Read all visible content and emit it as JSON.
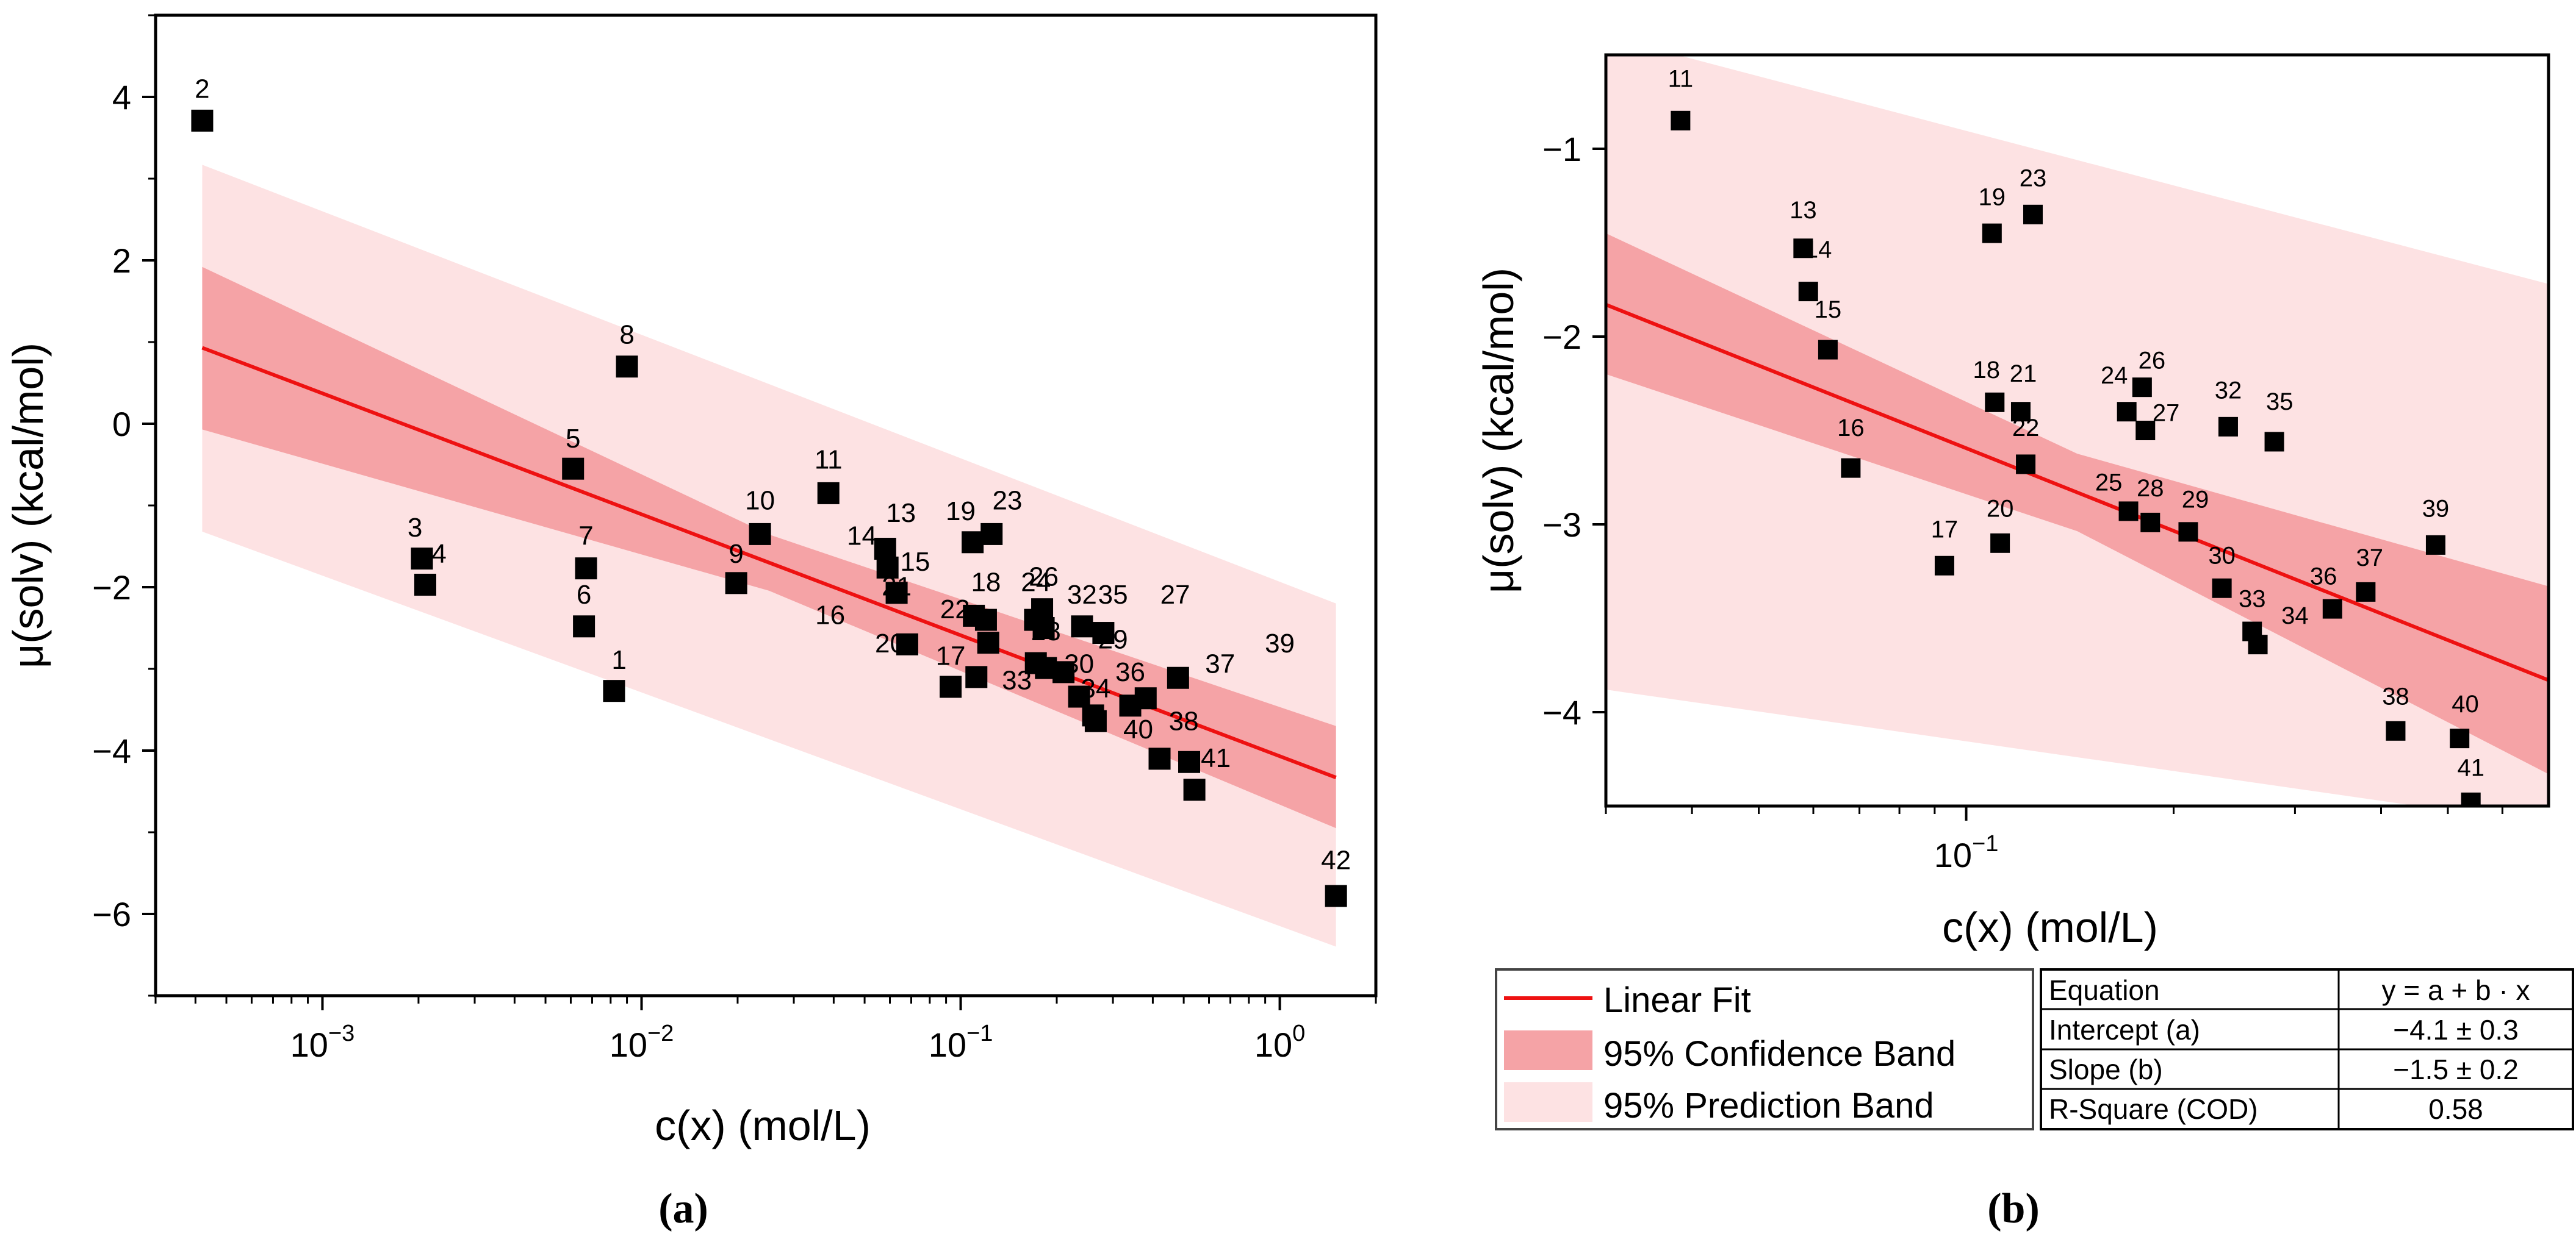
{
  "chart_data": [
    {
      "type": "scatter",
      "panel": "(a)",
      "xscale": "log",
      "xlabel": "c(x) (mol/L)",
      "ylabel": "μ(solv) (kcal/mol)",
      "xlim": [
        0.0003,
        2.0
      ],
      "ylim": [
        -7,
        5
      ],
      "xticks": [
        {
          "value": 0.001,
          "label": "10",
          "sup": "−3"
        },
        {
          "value": 0.01,
          "label": "10",
          "sup": "−2"
        },
        {
          "value": 0.1,
          "label": "10",
          "sup": "−1"
        },
        {
          "value": 1,
          "label": "10",
          "sup": "0"
        }
      ],
      "yticks": [
        {
          "value": 4,
          "label": "4"
        },
        {
          "value": 2,
          "label": "2"
        },
        {
          "value": 0,
          "label": "0"
        },
        {
          "value": -2,
          "label": "−2"
        },
        {
          "value": -4,
          "label": "−4"
        },
        {
          "value": -6,
          "label": "−6"
        }
      ],
      "fit": {
        "x0": 0.00042,
        "y0": 0.93,
        "x1": 1.5,
        "y1": -4.33
      },
      "confidence_band": {
        "upper_start": 1.92,
        "lower_start": -0.07,
        "upper_end": -3.7,
        "lower_end": -4.95
      },
      "prediction_band": {
        "upper_start": 3.17,
        "lower_start": -1.32,
        "upper_end": -2.2,
        "lower_end": -6.4
      },
      "points": [
        {
          "label": "1",
          "x": 0.0082,
          "y": -3.27
        },
        {
          "label": "2",
          "x": 0.00042,
          "y": 3.71
        },
        {
          "label": "3",
          "x": 0.00205,
          "y": -1.65
        },
        {
          "label": "4",
          "x": 0.0021,
          "y": -1.97
        },
        {
          "label": "5",
          "x": 0.0061,
          "y": -0.55
        },
        {
          "label": "6",
          "x": 0.0066,
          "y": -2.48
        },
        {
          "label": "7",
          "x": 0.0067,
          "y": -1.77
        },
        {
          "label": "8",
          "x": 0.009,
          "y": 0.7
        },
        {
          "label": "9",
          "x": 0.0198,
          "y": -1.95
        },
        {
          "label": "10",
          "x": 0.0235,
          "y": -1.35
        },
        {
          "label": "11",
          "x": 0.0385,
          "y": -0.85
        },
        {
          "label": "13",
          "x": 0.058,
          "y": -1.53
        },
        {
          "label": "14",
          "x": 0.059,
          "y": -1.76
        },
        {
          "label": "15",
          "x": 0.063,
          "y": -2.07
        },
        {
          "label": "16",
          "x": 0.068,
          "y": -2.7
        },
        {
          "label": "17",
          "x": 0.093,
          "y": -3.22
        },
        {
          "label": "18",
          "x": 0.11,
          "y": -2.35
        },
        {
          "label": "19",
          "x": 0.109,
          "y": -1.45
        },
        {
          "label": "20",
          "x": 0.112,
          "y": -3.1
        },
        {
          "label": "21",
          "x": 0.12,
          "y": -2.4
        },
        {
          "label": "22",
          "x": 0.122,
          "y": -2.68
        },
        {
          "label": "23",
          "x": 0.125,
          "y": -1.35
        },
        {
          "label": "24",
          "x": 0.171,
          "y": -2.4
        },
        {
          "label": "25",
          "x": 0.172,
          "y": -2.93
        },
        {
          "label": "26",
          "x": 0.18,
          "y": -2.27
        },
        {
          "label": "27",
          "x": 0.182,
          "y": -2.5
        },
        {
          "label": "28",
          "x": 0.185,
          "y": -2.99
        },
        {
          "label": "29",
          "x": 0.21,
          "y": -3.04
        },
        {
          "label": "30",
          "x": 0.235,
          "y": -3.34
        },
        {
          "label": "32",
          "x": 0.24,
          "y": -2.48
        },
        {
          "label": "33",
          "x": 0.26,
          "y": -3.57
        },
        {
          "label": "34",
          "x": 0.265,
          "y": -3.64
        },
        {
          "label": "35",
          "x": 0.28,
          "y": -2.56
        },
        {
          "label": "36",
          "x": 0.34,
          "y": -3.45
        },
        {
          "label": "37",
          "x": 0.38,
          "y": -3.36
        },
        {
          "label": "38",
          "x": 0.42,
          "y": -4.1
        },
        {
          "label": "39",
          "x": 0.48,
          "y": -3.11
        },
        {
          "label": "40",
          "x": 0.52,
          "y": -4.14
        },
        {
          "label": "41",
          "x": 0.54,
          "y": -4.48
        },
        {
          "label": "42",
          "x": 1.5,
          "y": -5.78
        }
      ],
      "visible_point_labels": [
        {
          "label": "1",
          "x": 0.0085,
          "y": -3.0
        },
        {
          "label": "2",
          "x": 0.00042,
          "y": 3.99
        },
        {
          "label": "3",
          "x": 0.00195,
          "y": -1.38
        },
        {
          "label": "4",
          "x": 0.00232,
          "y": -1.7
        },
        {
          "label": "5",
          "x": 0.0061,
          "y": -0.29
        },
        {
          "label": "6",
          "x": 0.0066,
          "y": -2.2
        },
        {
          "label": "7",
          "x": 0.0067,
          "y": -1.48
        },
        {
          "label": "8",
          "x": 0.009,
          "y": 0.98
        },
        {
          "label": "9",
          "x": 0.0198,
          "y": -1.7
        },
        {
          "label": "10",
          "x": 0.0235,
          "y": -1.05
        },
        {
          "label": "11",
          "x": 0.0385,
          "y": -0.55
        },
        {
          "label": "13",
          "x": 0.065,
          "y": -1.2
        },
        {
          "label": "14",
          "x": 0.049,
          "y": -1.48
        },
        {
          "label": "15",
          "x": 0.072,
          "y": -1.8
        },
        {
          "label": "16",
          "x": 0.039,
          "y": -2.45
        },
        {
          "label": "17",
          "x": 0.093,
          "y": -2.95
        },
        {
          "label": "18",
          "x": 0.12,
          "y": -2.05
        },
        {
          "label": "19",
          "x": 0.1,
          "y": -1.18
        },
        {
          "label": "20",
          "x": 0.06,
          "y": -2.8
        },
        {
          "label": "21",
          "x": 0.063,
          "y": -2.1
        },
        {
          "label": "22",
          "x": 0.096,
          "y": -2.38
        },
        {
          "label": "23",
          "x": 0.14,
          "y": -1.05
        },
        {
          "label": "24",
          "x": 0.172,
          "y": -2.05
        },
        {
          "label": "26",
          "x": 0.182,
          "y": -1.98
        },
        {
          "label": "27",
          "x": 0.47,
          "y": -2.2
        },
        {
          "label": "28",
          "x": 0.185,
          "y": -2.65
        },
        {
          "label": "29",
          "x": 0.3,
          "y": -2.75
        },
        {
          "label": "30",
          "x": 0.235,
          "y": -3.05
        },
        {
          "label": "32",
          "x": 0.24,
          "y": -2.2
        },
        {
          "label": "33",
          "x": 0.15,
          "y": -3.25
        },
        {
          "label": "34",
          "x": 0.265,
          "y": -3.35
        },
        {
          "label": "35",
          "x": 0.3,
          "y": -2.2
        },
        {
          "label": "36",
          "x": 0.34,
          "y": -3.15
        },
        {
          "label": "37",
          "x": 0.65,
          "y": -3.05
        },
        {
          "label": "38",
          "x": 0.5,
          "y": -3.75
        },
        {
          "label": "39",
          "x": 1.0,
          "y": -2.8
        },
        {
          "label": "40",
          "x": 0.36,
          "y": -3.85
        },
        {
          "label": "41",
          "x": 0.63,
          "y": -4.2
        },
        {
          "label": "42",
          "x": 1.5,
          "y": -5.45
        }
      ]
    },
    {
      "type": "scatter",
      "panel": "(b)",
      "xscale": "log",
      "xlabel": "c(x) (mol/L)",
      "ylabel": "μ(solv) (kcal/mol)",
      "xlim": [
        0.03,
        0.7
      ],
      "ylim": [
        -4.5,
        -0.5
      ],
      "xticks": [
        {
          "value": 0.1,
          "label": "10",
          "sup": "−1"
        }
      ],
      "yticks": [
        {
          "value": -1,
          "label": "−1"
        },
        {
          "value": -2,
          "label": "−2"
        },
        {
          "value": -3,
          "label": "−3"
        },
        {
          "value": -4,
          "label": "−4"
        }
      ],
      "fit": {
        "x0": 0.03,
        "y0": -1.83,
        "x1": 0.7,
        "y1": -3.83
      },
      "confidence_band": {
        "upper_start": -1.45,
        "lower_start": -2.2,
        "upper_end": -3.33,
        "lower_end": -4.33
      },
      "prediction_band": {
        "upper_start": -0.4,
        "lower_start": -3.88,
        "upper_end": -1.72,
        "lower_end": -4.6
      },
      "points": [
        {
          "label": "11",
          "x": 0.0385,
          "y": -0.85
        },
        {
          "label": "13",
          "x": 0.058,
          "y": -1.53
        },
        {
          "label": "14",
          "x": 0.059,
          "y": -1.76
        },
        {
          "label": "15",
          "x": 0.063,
          "y": -2.07
        },
        {
          "label": "16",
          "x": 0.068,
          "y": -2.7
        },
        {
          "label": "17",
          "x": 0.093,
          "y": -3.22
        },
        {
          "label": "18",
          "x": 0.11,
          "y": -2.35
        },
        {
          "label": "19",
          "x": 0.109,
          "y": -1.45
        },
        {
          "label": "20",
          "x": 0.112,
          "y": -3.1
        },
        {
          "label": "21",
          "x": 0.12,
          "y": -2.4
        },
        {
          "label": "22",
          "x": 0.122,
          "y": -2.68
        },
        {
          "label": "23",
          "x": 0.125,
          "y": -1.35
        },
        {
          "label": "24",
          "x": 0.171,
          "y": -2.4
        },
        {
          "label": "25",
          "x": 0.172,
          "y": -2.93
        },
        {
          "label": "26",
          "x": 0.18,
          "y": -2.27
        },
        {
          "label": "27",
          "x": 0.182,
          "y": -2.5
        },
        {
          "label": "28",
          "x": 0.185,
          "y": -2.99
        },
        {
          "label": "29",
          "x": 0.21,
          "y": -3.04
        },
        {
          "label": "30",
          "x": 0.235,
          "y": -3.34
        },
        {
          "label": "32",
          "x": 0.24,
          "y": -2.48
        },
        {
          "label": "33",
          "x": 0.26,
          "y": -3.57
        },
        {
          "label": "34",
          "x": 0.265,
          "y": -3.64
        },
        {
          "label": "35",
          "x": 0.28,
          "y": -2.56
        },
        {
          "label": "36",
          "x": 0.34,
          "y": -3.45
        },
        {
          "label": "37",
          "x": 0.38,
          "y": -3.36
        },
        {
          "label": "38",
          "x": 0.42,
          "y": -4.1
        },
        {
          "label": "39",
          "x": 0.48,
          "y": -3.11
        },
        {
          "label": "40",
          "x": 0.52,
          "y": -4.14
        },
        {
          "label": "41",
          "x": 0.54,
          "y": -4.48
        }
      ],
      "visible_point_labels": [
        {
          "label": "11",
          "x": 0.0385,
          "y": -0.67
        },
        {
          "label": "13",
          "x": 0.058,
          "y": -1.37
        },
        {
          "label": "14",
          "x": 0.061,
          "y": -1.58
        },
        {
          "label": "15",
          "x": 0.063,
          "y": -1.9
        },
        {
          "label": "16",
          "x": 0.068,
          "y": -2.53
        },
        {
          "label": "17",
          "x": 0.093,
          "y": -3.07
        },
        {
          "label": "18",
          "x": 0.107,
          "y": -2.22
        },
        {
          "label": "19",
          "x": 0.109,
          "y": -1.3
        },
        {
          "label": "20",
          "x": 0.112,
          "y": -2.96
        },
        {
          "label": "21",
          "x": 0.121,
          "y": -2.24
        },
        {
          "label": "22",
          "x": 0.122,
          "y": -2.53
        },
        {
          "label": "23",
          "x": 0.125,
          "y": -1.2
        },
        {
          "label": "24",
          "x": 0.164,
          "y": -2.25
        },
        {
          "label": "25",
          "x": 0.161,
          "y": -2.82
        },
        {
          "label": "26",
          "x": 0.186,
          "y": -2.17
        },
        {
          "label": "27",
          "x": 0.195,
          "y": -2.45
        },
        {
          "label": "28",
          "x": 0.185,
          "y": -2.85
        },
        {
          "label": "29",
          "x": 0.215,
          "y": -2.91
        },
        {
          "label": "30",
          "x": 0.235,
          "y": -3.21
        },
        {
          "label": "32",
          "x": 0.24,
          "y": -2.33
        },
        {
          "label": "33",
          "x": 0.26,
          "y": -3.44
        },
        {
          "label": "34",
          "x": 0.3,
          "y": -3.53
        },
        {
          "label": "35",
          "x": 0.285,
          "y": -2.39
        },
        {
          "label": "36",
          "x": 0.33,
          "y": -3.32
        },
        {
          "label": "37",
          "x": 0.385,
          "y": -3.22
        },
        {
          "label": "38",
          "x": 0.42,
          "y": -3.96
        },
        {
          "label": "39",
          "x": 0.48,
          "y": -2.96
        },
        {
          "label": "40",
          "x": 0.53,
          "y": -4.0
        },
        {
          "label": "41",
          "x": 0.54,
          "y": -4.34
        }
      ]
    }
  ],
  "legend": {
    "items": [
      {
        "label": "Linear Fit",
        "color": "#ee1111",
        "kind": "line"
      },
      {
        "label": "95% Confidence Band",
        "color": "#f5a3a6",
        "kind": "box"
      },
      {
        "label": "95% Prediction Band",
        "color": "#fde2e3",
        "kind": "box"
      }
    ]
  },
  "stats_table": {
    "rows": [
      {
        "key": "Equation",
        "value": "y = a + b · x"
      },
      {
        "key": "Intercept (a)",
        "value": "−4.1 ± 0.3"
      },
      {
        "key": "Slope (b)",
        "value": "−1.5 ± 0.2"
      },
      {
        "key": "R-Square (COD)",
        "value": "0.58"
      }
    ]
  },
  "sublabels": {
    "a": "(a)",
    "b": "(b)"
  },
  "colors": {
    "fit": "#ee1111",
    "confidence": "#f5a3a6",
    "prediction": "#fde2e3",
    "point": "#000000",
    "axis": "#000000"
  }
}
